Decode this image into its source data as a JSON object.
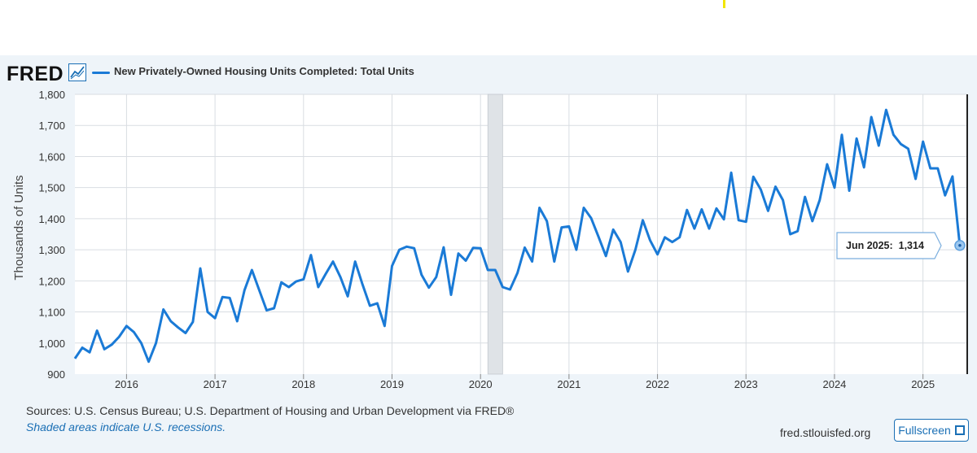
{
  "header": {
    "logo_text": "FRED",
    "series_title": "New Privately-Owned Housing Units Completed: Total Units",
    "accent_color": "#1a7ad6"
  },
  "chart_data": {
    "type": "line",
    "title": "New Privately-Owned Housing Units Completed: Total Units",
    "xlabel": "",
    "ylabel": "Thousands of Units",
    "ylim": [
      900,
      1800
    ],
    "yticks": [
      "900",
      "1,000",
      "1,100",
      "1,200",
      "1,300",
      "1,400",
      "1,500",
      "1,600",
      "1,700",
      "1,800"
    ],
    "ytick_values": [
      900,
      1000,
      1100,
      1200,
      1300,
      1400,
      1500,
      1600,
      1700,
      1800
    ],
    "xticks": [
      "2016",
      "2017",
      "2018",
      "2019",
      "2020",
      "2021",
      "2022",
      "2023",
      "2024",
      "2025"
    ],
    "xtick_values": [
      2016,
      2017,
      2018,
      2019,
      2020,
      2021,
      2022,
      2023,
      2024,
      2025
    ],
    "x_start": 2015.4167,
    "x_step": 0.083333,
    "recession": {
      "start": 2020.0833,
      "end": 2020.25
    },
    "series": [
      {
        "name": "New Privately-Owned Housing Units Completed: Total Units",
        "color": "#1a7ad6",
        "values": [
          950,
          985,
          970,
          1040,
          980,
          995,
          1020,
          1055,
          1035,
          1000,
          940,
          1000,
          1108,
          1070,
          1050,
          1032,
          1068,
          1240,
          1100,
          1080,
          1148,
          1145,
          1070,
          1170,
          1235,
          1170,
          1105,
          1112,
          1195,
          1180,
          1198,
          1205,
          1283,
          1180,
          1222,
          1262,
          1212,
          1150,
          1262,
          1188,
          1120,
          1128,
          1055,
          1248,
          1300,
          1310,
          1305,
          1220,
          1178,
          1212,
          1308,
          1155,
          1288,
          1265,
          1306,
          1305,
          1235,
          1235,
          1180,
          1172,
          1225,
          1307,
          1262,
          1435,
          1392,
          1262,
          1372,
          1375,
          1300,
          1435,
          1402,
          1342,
          1280,
          1365,
          1325,
          1230,
          1300,
          1395,
          1330,
          1285,
          1340,
          1325,
          1340,
          1428,
          1368,
          1430,
          1368,
          1433,
          1398,
          1548,
          1395,
          1390,
          1535,
          1494,
          1425,
          1503,
          1460,
          1350,
          1360,
          1470,
          1392,
          1460,
          1575,
          1500,
          1670,
          1490,
          1658,
          1565,
          1727,
          1635,
          1750,
          1670,
          1640,
          1625,
          1528,
          1648,
          1562,
          1562,
          1475,
          1536,
          1314
        ]
      }
    ],
    "tooltip": {
      "label": "Jun 2025:",
      "value": "1,314"
    }
  },
  "footer": {
    "source_text": "Sources: U.S. Census Bureau; U.S. Department of Housing and Urban Development via FRED®",
    "shaded_note": "Shaded areas indicate U.S. recessions.",
    "site": "fred.stlouisfed.org",
    "fullscreen_label": "Fullscreen"
  }
}
